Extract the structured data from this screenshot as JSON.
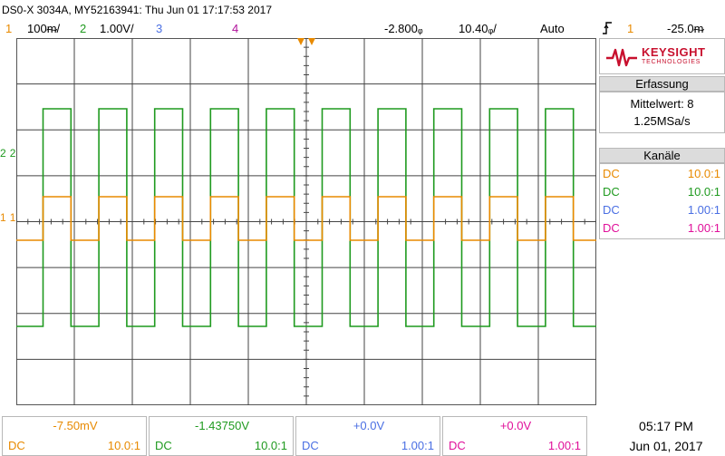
{
  "title": "DS0-X 3034A, MY52163941: Thu Jun 01 17:17:53 2017",
  "status": {
    "ch1_num": "1",
    "ch1_scale": "100ᵯ/",
    "ch2_num": "2",
    "ch2_scale": "1.00V/",
    "ch3_num": "3",
    "ch4_num": "4",
    "time_offset": "-2.800ᵩ",
    "time_scale": "10.40ᵩ/",
    "trigger_mode": "Auto",
    "trigger_icon": "rising-edge-trigger-icon",
    "trigger_src": "1",
    "trigger_level": "-25.0ᵯ"
  },
  "markers": {
    "ch1": "1",
    "ch2": "2"
  },
  "brand": {
    "name": "KEYSIGHT",
    "sub": "TECHNOLOGIES"
  },
  "acquisition": {
    "header": "Erfassung",
    "mode": "Mittelwert: 8",
    "rate": "1.25MSa/s"
  },
  "channels_panel": {
    "header": "Kanäle",
    "rows": [
      {
        "coupling": "DC",
        "probe": "10.0:1",
        "color": "#e88a00"
      },
      {
        "coupling": "DC",
        "probe": "10.0:1",
        "color": "#1f9a1f"
      },
      {
        "coupling": "DC",
        "probe": "1.00:1",
        "color": "#4a6fe3"
      },
      {
        "coupling": "DC",
        "probe": "1.00:1",
        "color": "#e0109a"
      }
    ]
  },
  "bottom": [
    {
      "value": "-7.50mV",
      "coupling": "DC",
      "probe": "10.0:1",
      "color": "#e88a00"
    },
    {
      "value": "-1.43750V",
      "coupling": "DC",
      "probe": "10.0:1",
      "color": "#1f9a1f"
    },
    {
      "value": "+0.0V",
      "coupling": "DC",
      "probe": "1.00:1",
      "color": "#4a6fe3"
    },
    {
      "value": "+0.0V",
      "coupling": "DC",
      "probe": "1.00:1",
      "color": "#e0109a"
    }
  ],
  "clock": {
    "time": "05:17 PM",
    "date": "Jun 01, 2017"
  },
  "colors": {
    "ch1": "#e88a00",
    "ch2": "#1f9a1f",
    "ch3": "#4a6fe3",
    "ch4": "#e0109a",
    "grid": "#555555"
  }
}
